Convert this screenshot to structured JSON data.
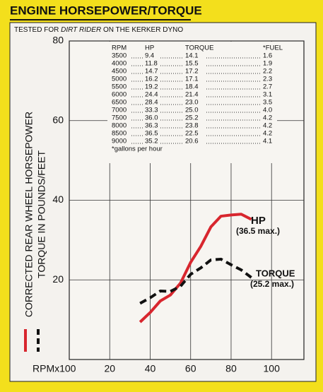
{
  "chart_data": {
    "type": "line",
    "title": "ENGINE HORSEPOWER/TORQUE",
    "subtitle": [
      "TESTED FOR ",
      "DIRT RIDER",
      " ON THE KERKER DYNO"
    ],
    "ylabel": [
      "CORRECTED REAR WHEEL HORSEPOWER",
      "TORQUE IN POUNDS/FEET"
    ],
    "xlabel": "RPMx100",
    "x": [
      35,
      40,
      45,
      50,
      55,
      60,
      65,
      70,
      75,
      80,
      85,
      90
    ],
    "series": [
      {
        "name": "HP",
        "color": "#d8262e",
        "dash": false,
        "values": [
          9.4,
          11.8,
          14.7,
          16.2,
          19.2,
          24.4,
          28.4,
          33.3,
          36.0,
          36.3,
          36.5,
          35.2
        ]
      },
      {
        "name": "TORQUE",
        "color": "#111111",
        "dash": true,
        "values": [
          14.1,
          15.5,
          17.2,
          17.1,
          18.4,
          21.4,
          23.0,
          25.0,
          25.2,
          23.8,
          22.5,
          20.6
        ]
      }
    ],
    "annotations": [
      "HP",
      "(36.5 max.)",
      "TORQUE",
      "(25.2 max.)"
    ],
    "xlim": [
      0,
      116
    ],
    "ylim": [
      0,
      80
    ],
    "xticks": [
      20,
      40,
      60,
      80,
      100
    ],
    "yticks": [
      20,
      40,
      60,
      80
    ],
    "grid": true,
    "table": {
      "header": [
        "RPM",
        "HP",
        "TORQUE",
        "*FUEL"
      ],
      "rows": [
        [
          "3500",
          "9.4",
          "14.1",
          "1.6"
        ],
        [
          "4000",
          "11.8",
          "15.5",
          "1.9"
        ],
        [
          "4500",
          "14.7",
          "17.2",
          "2.2"
        ],
        [
          "5000",
          "16.2",
          "17.1",
          "2.3"
        ],
        [
          "5500",
          "19.2",
          "18.4",
          "2.7"
        ],
        [
          "6000",
          "24.4",
          "21.4",
          "3.1"
        ],
        [
          "6500",
          "28.4",
          "23.0",
          "3.5"
        ],
        [
          "7000",
          "33.3",
          "25.0",
          "4.0"
        ],
        [
          "7500",
          "36.0",
          "25.2",
          "4.2"
        ],
        [
          "8000",
          "36.3",
          "23.8",
          "4.2"
        ],
        [
          "8500",
          "36.5",
          "22.5",
          "4.2"
        ],
        [
          "9000",
          "35.2",
          "20.6",
          "4.1"
        ]
      ],
      "note": "*gallons per hour"
    }
  }
}
